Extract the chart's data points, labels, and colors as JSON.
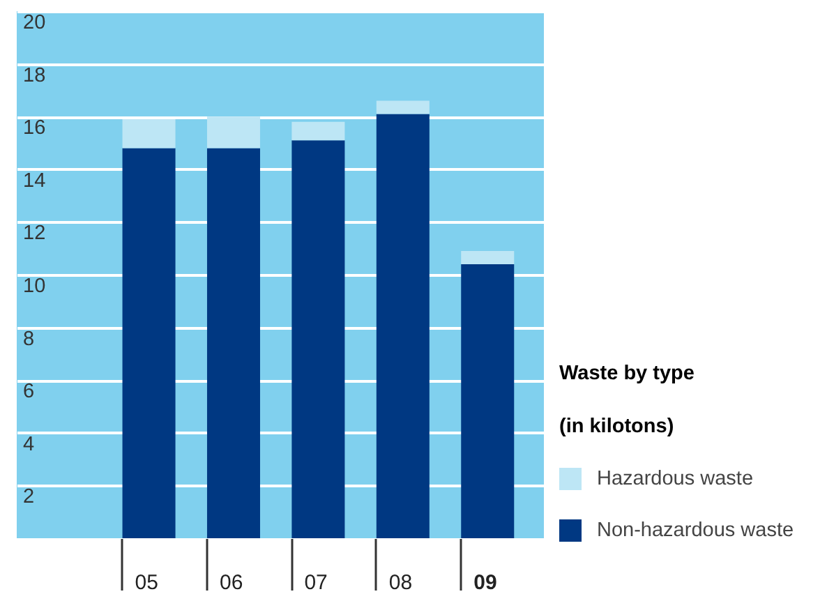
{
  "chart_data": {
    "type": "bar",
    "categories": [
      "05",
      "06",
      "07",
      "08",
      "09"
    ],
    "series": [
      {
        "name": "Non-hazardous waste",
        "color": "#003882",
        "values": [
          14.8,
          14.8,
          15.1,
          16.1,
          10.4
        ]
      },
      {
        "name": "Hazardous waste",
        "color": "#bde6f5",
        "values": [
          1.1,
          1.2,
          0.7,
          0.5,
          0.5
        ]
      }
    ],
    "stacked": true,
    "ylim": [
      0,
      20
    ],
    "yticks": [
      2,
      4,
      6,
      8,
      10,
      12,
      14,
      16,
      18,
      20
    ],
    "grid": "y",
    "legend": "bottom right",
    "legend_title": "Waste by type\n(in kilotons)"
  }
}
